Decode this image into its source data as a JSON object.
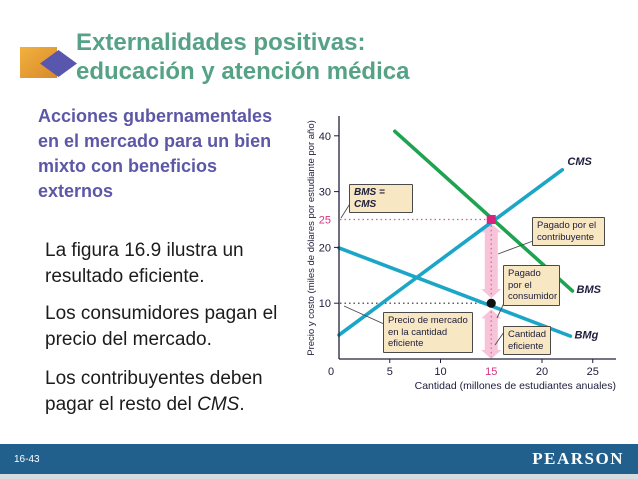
{
  "title": {
    "line1": "Externalidades positivas:",
    "line2": "educación y atención médica",
    "color": "#55A287"
  },
  "body": {
    "heading": "Acciones gubernamentales en el mercado para un bien mixto con beneficios externos",
    "heading_color": "#5C57A7",
    "paragraphs": [
      "La figura 16.9 ilustra un resultado eficiente.",
      "Los consumidores pagan el precio del mercado."
    ],
    "paragraph3": {
      "prefix": "Los contribuyentes deben pagar el resto del ",
      "italic": "CMS",
      "suffix": "."
    }
  },
  "footer": {
    "page_number": "16-43",
    "brand": "PEARSON",
    "bar_color": "#21608C"
  },
  "chart_data": {
    "type": "line",
    "title": "",
    "xlabel": "Cantidad (millones de estudiantes anuales)",
    "ylabel": "Precio y costo (miles de dólares por estudiante por año)",
    "xlim": [
      0,
      27
    ],
    "ylim": [
      0,
      43
    ],
    "grid": false,
    "axis_color": "#20203E",
    "text_color": "#20203E",
    "highlight_color": "#D5337F",
    "callout_bg": "#F8E7C3",
    "x_ticks": [
      {
        "v": 0,
        "label": "0",
        "highlight": false,
        "dash": false
      },
      {
        "v": 5,
        "label": "5",
        "highlight": false,
        "dash": true
      },
      {
        "v": 10,
        "label": "10",
        "highlight": false,
        "dash": true
      },
      {
        "v": 15,
        "label": "15",
        "highlight": true,
        "dash": false
      },
      {
        "v": 20,
        "label": "20",
        "highlight": false,
        "dash": true
      },
      {
        "v": 25,
        "label": "25",
        "highlight": false,
        "dash": true
      }
    ],
    "y_ticks": [
      {
        "v": 10,
        "label": "10",
        "highlight": false,
        "dash": true
      },
      {
        "v": 20,
        "label": "20",
        "highlight": false,
        "dash": true
      },
      {
        "v": 25,
        "label": "25",
        "highlight": true,
        "dash": false
      },
      {
        "v": 30,
        "label": "30",
        "highlight": false,
        "dash": true
      },
      {
        "v": 40,
        "label": "40",
        "highlight": false,
        "dash": true
      }
    ],
    "series": [
      {
        "name": "CMS",
        "color": "#1BA6C7",
        "points": [
          [
            0,
            4.3
          ],
          [
            22,
            33.9
          ]
        ],
        "label_pos": [
          22.5,
          34.8
        ]
      },
      {
        "name": "BMS",
        "color": "#1EA351",
        "points": [
          [
            5.5,
            40.8
          ],
          [
            23,
            12.2
          ]
        ],
        "label_pos": [
          23.4,
          11.8
        ]
      },
      {
        "name": "BMg",
        "color": "#1BA6C7",
        "points": [
          [
            0,
            19.9
          ],
          [
            22.8,
            4.1
          ]
        ],
        "label_pos": [
          23.2,
          3.7
        ]
      }
    ],
    "markers": [
      {
        "id": "efficient-point",
        "x": 15,
        "y": 25,
        "shape": "square",
        "color": "#D8257C"
      },
      {
        "id": "market-price-point",
        "x": 15,
        "y": 10,
        "shape": "circle",
        "color": "#111111"
      }
    ],
    "guides": [
      {
        "axis": "y",
        "value": 25,
        "to_x": 15,
        "color": "#E0559C"
      },
      {
        "axis": "y",
        "value": 10,
        "to_x": 14.8,
        "color": "#2b2b2b"
      }
    ],
    "arrows": [
      {
        "id": "taxpayer-arrow",
        "x": 15,
        "from": 10.9,
        "to": 24.3
      },
      {
        "id": "consumer-arrow",
        "x": 15,
        "from": 0,
        "to": 8.9
      }
    ],
    "arrow_fill": "#F6C3D8",
    "arrow_dots": "#E46FA8",
    "callouts": [
      {
        "id": "bms-cms",
        "text": "BMS = CMS",
        "italic": true
      },
      {
        "id": "pagado-contribuyente",
        "text": "Pagado por el contribuyente",
        "italic": false
      },
      {
        "id": "pagado-consumidor",
        "text": "Pagado por el consumidor",
        "italic": false
      },
      {
        "id": "precio-mercado",
        "text": "Precio de mercado en la cantidad eficiente",
        "italic": false
      },
      {
        "id": "cantidad-eficiente",
        "text": "Cantidad eficiente",
        "italic": false
      }
    ]
  }
}
